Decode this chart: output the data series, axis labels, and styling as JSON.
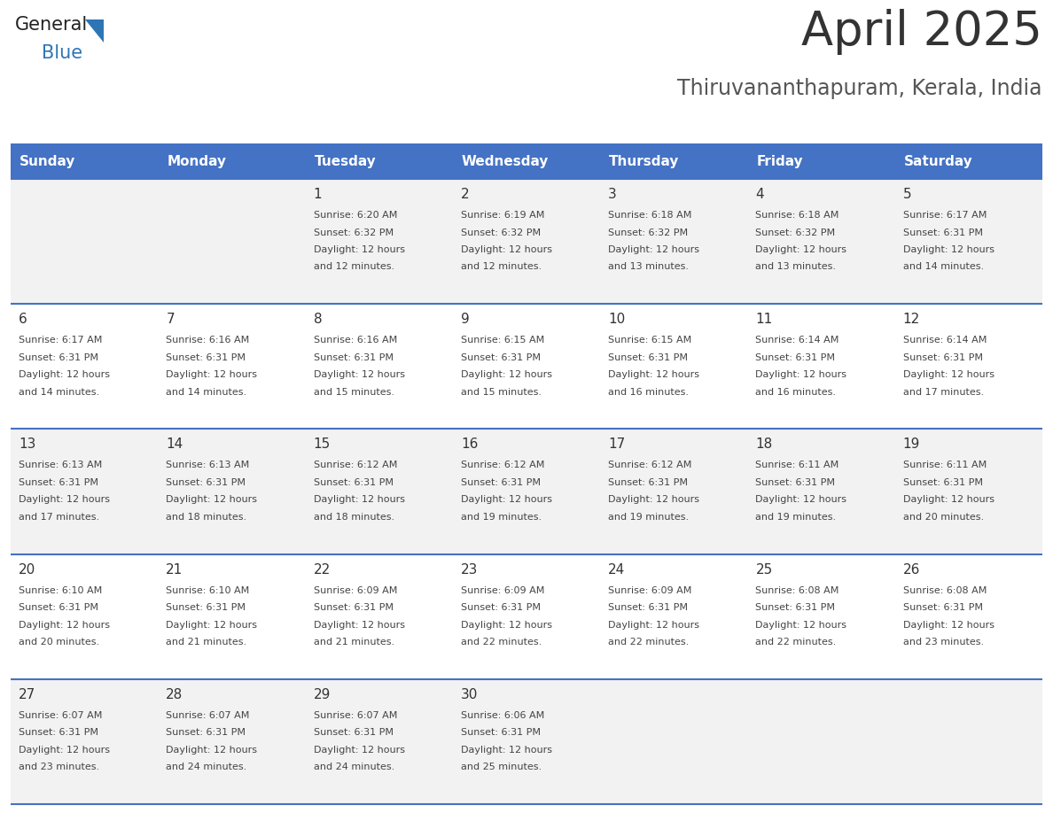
{
  "title": "April 2025",
  "subtitle": "Thiruvananthapuram, Kerala, India",
  "title_color": "#333333",
  "subtitle_color": "#555555",
  "header_bg_color": "#4472C4",
  "header_text_color": "#FFFFFF",
  "day_headers": [
    "Sunday",
    "Monday",
    "Tuesday",
    "Wednesday",
    "Thursday",
    "Friday",
    "Saturday"
  ],
  "row_bg_even": "#F2F2F2",
  "row_bg_odd": "#FFFFFF",
  "cell_border_color": "#4472C4",
  "day_num_color": "#333333",
  "cell_text_color": "#444444",
  "logo_general_color": "#222222",
  "logo_blue_color": "#2E75B6",
  "calendar_data": [
    [
      null,
      null,
      {
        "day": 1,
        "sunrise": "6:20 AM",
        "sunset": "6:32 PM",
        "daylight": "12 hours and 12 minutes"
      },
      {
        "day": 2,
        "sunrise": "6:19 AM",
        "sunset": "6:32 PM",
        "daylight": "12 hours and 12 minutes"
      },
      {
        "day": 3,
        "sunrise": "6:18 AM",
        "sunset": "6:32 PM",
        "daylight": "12 hours and 13 minutes"
      },
      {
        "day": 4,
        "sunrise": "6:18 AM",
        "sunset": "6:32 PM",
        "daylight": "12 hours and 13 minutes"
      },
      {
        "day": 5,
        "sunrise": "6:17 AM",
        "sunset": "6:31 PM",
        "daylight": "12 hours and 14 minutes"
      }
    ],
    [
      {
        "day": 6,
        "sunrise": "6:17 AM",
        "sunset": "6:31 PM",
        "daylight": "12 hours and 14 minutes"
      },
      {
        "day": 7,
        "sunrise": "6:16 AM",
        "sunset": "6:31 PM",
        "daylight": "12 hours and 14 minutes"
      },
      {
        "day": 8,
        "sunrise": "6:16 AM",
        "sunset": "6:31 PM",
        "daylight": "12 hours and 15 minutes"
      },
      {
        "day": 9,
        "sunrise": "6:15 AM",
        "sunset": "6:31 PM",
        "daylight": "12 hours and 15 minutes"
      },
      {
        "day": 10,
        "sunrise": "6:15 AM",
        "sunset": "6:31 PM",
        "daylight": "12 hours and 16 minutes"
      },
      {
        "day": 11,
        "sunrise": "6:14 AM",
        "sunset": "6:31 PM",
        "daylight": "12 hours and 16 minutes"
      },
      {
        "day": 12,
        "sunrise": "6:14 AM",
        "sunset": "6:31 PM",
        "daylight": "12 hours and 17 minutes"
      }
    ],
    [
      {
        "day": 13,
        "sunrise": "6:13 AM",
        "sunset": "6:31 PM",
        "daylight": "12 hours and 17 minutes"
      },
      {
        "day": 14,
        "sunrise": "6:13 AM",
        "sunset": "6:31 PM",
        "daylight": "12 hours and 18 minutes"
      },
      {
        "day": 15,
        "sunrise": "6:12 AM",
        "sunset": "6:31 PM",
        "daylight": "12 hours and 18 minutes"
      },
      {
        "day": 16,
        "sunrise": "6:12 AM",
        "sunset": "6:31 PM",
        "daylight": "12 hours and 19 minutes"
      },
      {
        "day": 17,
        "sunrise": "6:12 AM",
        "sunset": "6:31 PM",
        "daylight": "12 hours and 19 minutes"
      },
      {
        "day": 18,
        "sunrise": "6:11 AM",
        "sunset": "6:31 PM",
        "daylight": "12 hours and 19 minutes"
      },
      {
        "day": 19,
        "sunrise": "6:11 AM",
        "sunset": "6:31 PM",
        "daylight": "12 hours and 20 minutes"
      }
    ],
    [
      {
        "day": 20,
        "sunrise": "6:10 AM",
        "sunset": "6:31 PM",
        "daylight": "12 hours and 20 minutes"
      },
      {
        "day": 21,
        "sunrise": "6:10 AM",
        "sunset": "6:31 PM",
        "daylight": "12 hours and 21 minutes"
      },
      {
        "day": 22,
        "sunrise": "6:09 AM",
        "sunset": "6:31 PM",
        "daylight": "12 hours and 21 minutes"
      },
      {
        "day": 23,
        "sunrise": "6:09 AM",
        "sunset": "6:31 PM",
        "daylight": "12 hours and 22 minutes"
      },
      {
        "day": 24,
        "sunrise": "6:09 AM",
        "sunset": "6:31 PM",
        "daylight": "12 hours and 22 minutes"
      },
      {
        "day": 25,
        "sunrise": "6:08 AM",
        "sunset": "6:31 PM",
        "daylight": "12 hours and 22 minutes"
      },
      {
        "day": 26,
        "sunrise": "6:08 AM",
        "sunset": "6:31 PM",
        "daylight": "12 hours and 23 minutes"
      }
    ],
    [
      {
        "day": 27,
        "sunrise": "6:07 AM",
        "sunset": "6:31 PM",
        "daylight": "12 hours and 23 minutes"
      },
      {
        "day": 28,
        "sunrise": "6:07 AM",
        "sunset": "6:31 PM",
        "daylight": "12 hours and 24 minutes"
      },
      {
        "day": 29,
        "sunrise": "6:07 AM",
        "sunset": "6:31 PM",
        "daylight": "12 hours and 24 minutes"
      },
      {
        "day": 30,
        "sunrise": "6:06 AM",
        "sunset": "6:31 PM",
        "daylight": "12 hours and 25 minutes"
      },
      null,
      null,
      null
    ]
  ]
}
